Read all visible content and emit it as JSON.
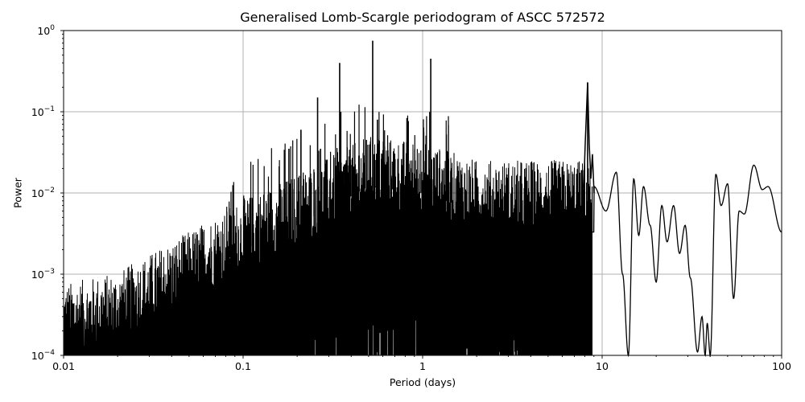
{
  "chart_data": {
    "type": "line",
    "title": "Generalised Lomb-Scargle periodogram of ASCC 572572",
    "xlabel": "Period (days)",
    "ylabel": "Power",
    "xscale": "log",
    "yscale": "log",
    "xlim": [
      0.01,
      100
    ],
    "ylim": [
      0.0001,
      1
    ],
    "grid": true,
    "legend": null,
    "line_color": "#000000",
    "grid_color": "#b0b0b0",
    "x_ticks": [
      {
        "value": 0.01,
        "label": "0.01"
      },
      {
        "value": 0.1,
        "label": "0.1"
      },
      {
        "value": 1,
        "label": "1"
      },
      {
        "value": 10,
        "label": "10"
      },
      {
        "value": 100,
        "label": "100"
      }
    ],
    "y_ticks": [
      {
        "value": 1,
        "base": "10",
        "exp": "0"
      },
      {
        "value": 0.1,
        "base": "10",
        "exp": "−1"
      },
      {
        "value": 0.01,
        "base": "10",
        "exp": "−2"
      },
      {
        "value": 0.001,
        "base": "10",
        "exp": "−3"
      },
      {
        "value": 0.0001,
        "base": "10",
        "exp": "−4"
      }
    ],
    "major_peaks": [
      {
        "period": 0.527,
        "power": 0.75
      },
      {
        "period": 1.11,
        "power": 0.45
      },
      {
        "period": 0.345,
        "power": 0.4
      },
      {
        "period": 8.3,
        "power": 0.23
      },
      {
        "period": 0.26,
        "power": 0.15
      },
      {
        "period": 0.21,
        "power": 0.06
      },
      {
        "period": 0.35,
        "power": 0.1
      },
      {
        "period": 0.27,
        "power": 0.035
      },
      {
        "period": 0.18,
        "power": 0.035
      },
      {
        "period": 0.56,
        "power": 0.08
      }
    ],
    "envelope": [
      {
        "period": 0.01,
        "power": 0.00018
      },
      {
        "period": 0.02,
        "power": 0.00025
      },
      {
        "period": 0.05,
        "power": 0.0008
      },
      {
        "period": 0.1,
        "power": 0.002
      },
      {
        "period": 0.2,
        "power": 0.004
      },
      {
        "period": 0.5,
        "power": 0.012
      },
      {
        "period": 1.0,
        "power": 0.01
      },
      {
        "period": 2.0,
        "power": 0.006
      },
      {
        "period": 5.0,
        "power": 0.006
      }
    ],
    "smooth_tail": [
      {
        "period": 9.0,
        "power": 0.012
      },
      {
        "period": 10.5,
        "power": 0.006
      },
      {
        "period": 12.0,
        "power": 0.018
      },
      {
        "period": 13.0,
        "power": 0.001
      },
      {
        "period": 14.0,
        "power": 0.0001
      },
      {
        "period": 15.0,
        "power": 0.015
      },
      {
        "period": 16.0,
        "power": 0.003
      },
      {
        "period": 17.0,
        "power": 0.012
      },
      {
        "period": 18.5,
        "power": 0.004
      },
      {
        "period": 20.0,
        "power": 0.0008
      },
      {
        "period": 21.5,
        "power": 0.007
      },
      {
        "period": 23.0,
        "power": 0.0025
      },
      {
        "period": 25.0,
        "power": 0.007
      },
      {
        "period": 27.0,
        "power": 0.0018
      },
      {
        "period": 29.0,
        "power": 0.004
      },
      {
        "period": 31.0,
        "power": 0.0009
      },
      {
        "period": 34.0,
        "power": 0.00011
      },
      {
        "period": 36.0,
        "power": 0.0003
      },
      {
        "period": 37.5,
        "power": 0.0001
      },
      {
        "period": 38.5,
        "power": 0.00025
      },
      {
        "period": 40.0,
        "power": 0.0001
      },
      {
        "period": 43.0,
        "power": 0.017
      },
      {
        "period": 46.0,
        "power": 0.007
      },
      {
        "period": 50.0,
        "power": 0.013
      },
      {
        "period": 54.0,
        "power": 0.0005
      },
      {
        "period": 58.0,
        "power": 0.006
      },
      {
        "period": 62.0,
        "power": 0.0055
      },
      {
        "period": 70.0,
        "power": 0.022
      },
      {
        "period": 78.0,
        "power": 0.011
      },
      {
        "period": 84.0,
        "power": 0.012
      },
      {
        "period": 100.0,
        "power": 0.0033
      }
    ]
  }
}
